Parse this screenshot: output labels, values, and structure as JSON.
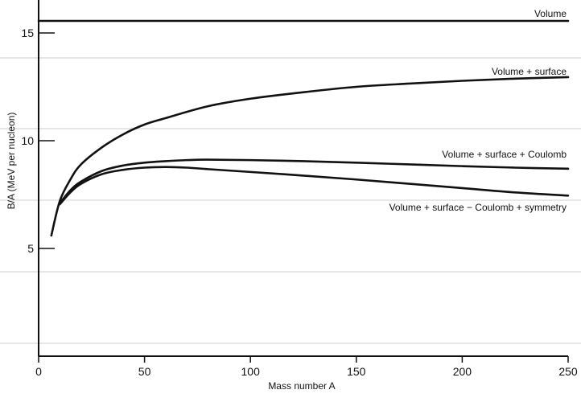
{
  "chart_data": {
    "type": "line",
    "xlabel": "Mass number A",
    "ylabel": "B/A (MeV per nucleon)",
    "xlim": [
      0,
      250
    ],
    "ylim": [
      0,
      16.5
    ],
    "x_ticks": [
      0,
      50,
      100,
      150,
      200,
      250
    ],
    "y_ticks": [
      5,
      10,
      15
    ],
    "grid": false,
    "series": [
      {
        "name": "Volume",
        "x": [
          0,
          250
        ],
        "y": [
          15.56,
          15.56
        ]
      },
      {
        "name": "Volume + surface",
        "x": [
          6,
          10,
          15,
          20,
          30,
          40,
          50,
          60,
          80,
          100,
          125,
          150,
          175,
          200,
          225,
          250
        ],
        "y": [
          5.6,
          7.2,
          8.2,
          8.9,
          9.7,
          10.3,
          10.75,
          11.05,
          11.6,
          11.95,
          12.25,
          12.5,
          12.65,
          12.78,
          12.88,
          12.95
        ]
      },
      {
        "name": "Volume + surface + Coulomb",
        "x": [
          10,
          15,
          20,
          30,
          40,
          50,
          60,
          70,
          80,
          100,
          125,
          150,
          175,
          200,
          225,
          250
        ],
        "y": [
          7.1,
          7.7,
          8.1,
          8.6,
          8.85,
          8.98,
          9.05,
          9.1,
          9.12,
          9.1,
          9.05,
          8.98,
          8.9,
          8.82,
          8.75,
          8.7
        ]
      },
      {
        "name": "Volume + surface − Coulomb + symmetry",
        "x": [
          10,
          15,
          20,
          30,
          40,
          50,
          60,
          70,
          80,
          100,
          125,
          150,
          175,
          200,
          225,
          250
        ],
        "y": [
          7.05,
          7.6,
          8.0,
          8.45,
          8.65,
          8.75,
          8.78,
          8.75,
          8.68,
          8.55,
          8.38,
          8.2,
          8.0,
          7.8,
          7.6,
          7.45
        ]
      }
    ],
    "annotations": [
      "Volume",
      "Volume + surface",
      "Volume + surface + Coulomb",
      "Volume + surface − Coulomb + symmetry"
    ]
  }
}
